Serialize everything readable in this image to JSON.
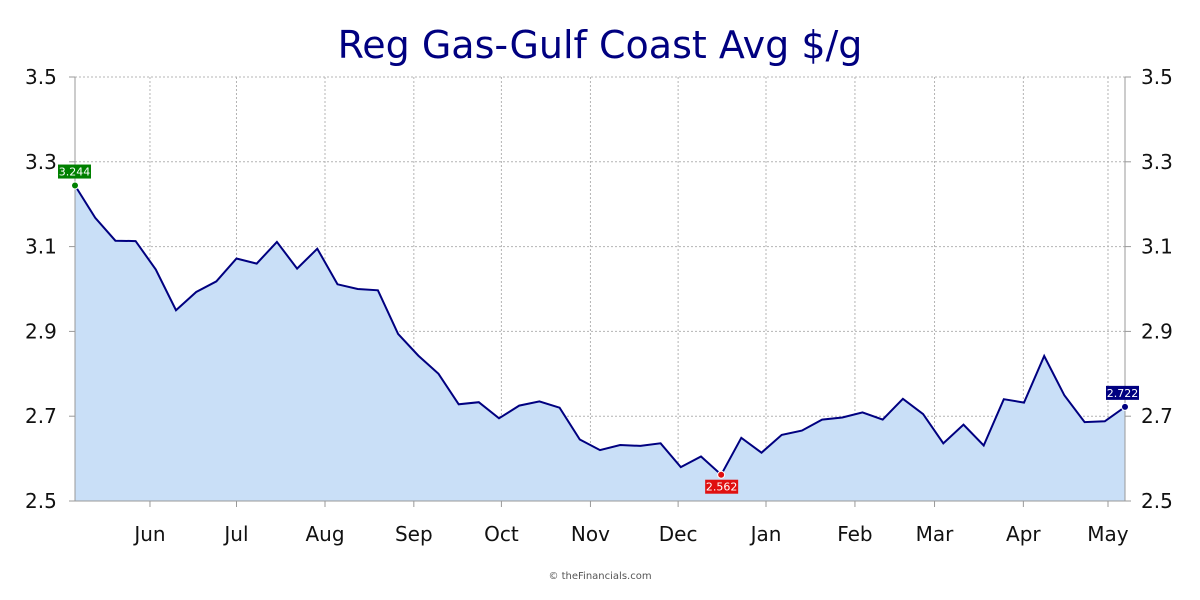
{
  "chart_data": {
    "type": "area",
    "title": "Reg Gas-Gulf Coast Avg $/g",
    "xlabel": "",
    "ylabel": "",
    "ylim": [
      2.5,
      3.5
    ],
    "yticks": [
      "2.5",
      "2.7",
      "2.9",
      "3.1",
      "3.3",
      "3.5"
    ],
    "xticks": [
      "Jun",
      "Jul",
      "Aug",
      "Sep",
      "Oct",
      "Nov",
      "Dec",
      "Jan",
      "Feb",
      "Mar",
      "Apr",
      "May"
    ],
    "grid": true,
    "legend": "none",
    "values": [
      3.244,
      3.168,
      3.114,
      3.113,
      3.046,
      2.95,
      2.993,
      3.018,
      3.072,
      3.06,
      3.111,
      3.048,
      3.095,
      3.011,
      3.0,
      2.997,
      2.894,
      2.843,
      2.8,
      2.728,
      2.733,
      2.695,
      2.725,
      2.735,
      2.72,
      2.645,
      2.62,
      2.632,
      2.63,
      2.636,
      2.58,
      2.605,
      2.562,
      2.649,
      2.614,
      2.656,
      2.666,
      2.692,
      2.697,
      2.709,
      2.692,
      2.741,
      2.705,
      2.636,
      2.68,
      2.631,
      2.74,
      2.732,
      2.842,
      2.749,
      2.686,
      2.688,
      2.722
    ],
    "annotations": [
      {
        "index": 0,
        "label": "3.244",
        "color": "#008000"
      },
      {
        "index": 32,
        "label": "2.562",
        "color": "#e01010"
      },
      {
        "index": 52,
        "label": "2.722",
        "color": "#000080"
      }
    ],
    "colors": {
      "line": "#000080",
      "fill": "#c9dff7",
      "grid": "#b4b4b4",
      "axis": "#999999"
    }
  },
  "credit": "© theFinancials.com"
}
